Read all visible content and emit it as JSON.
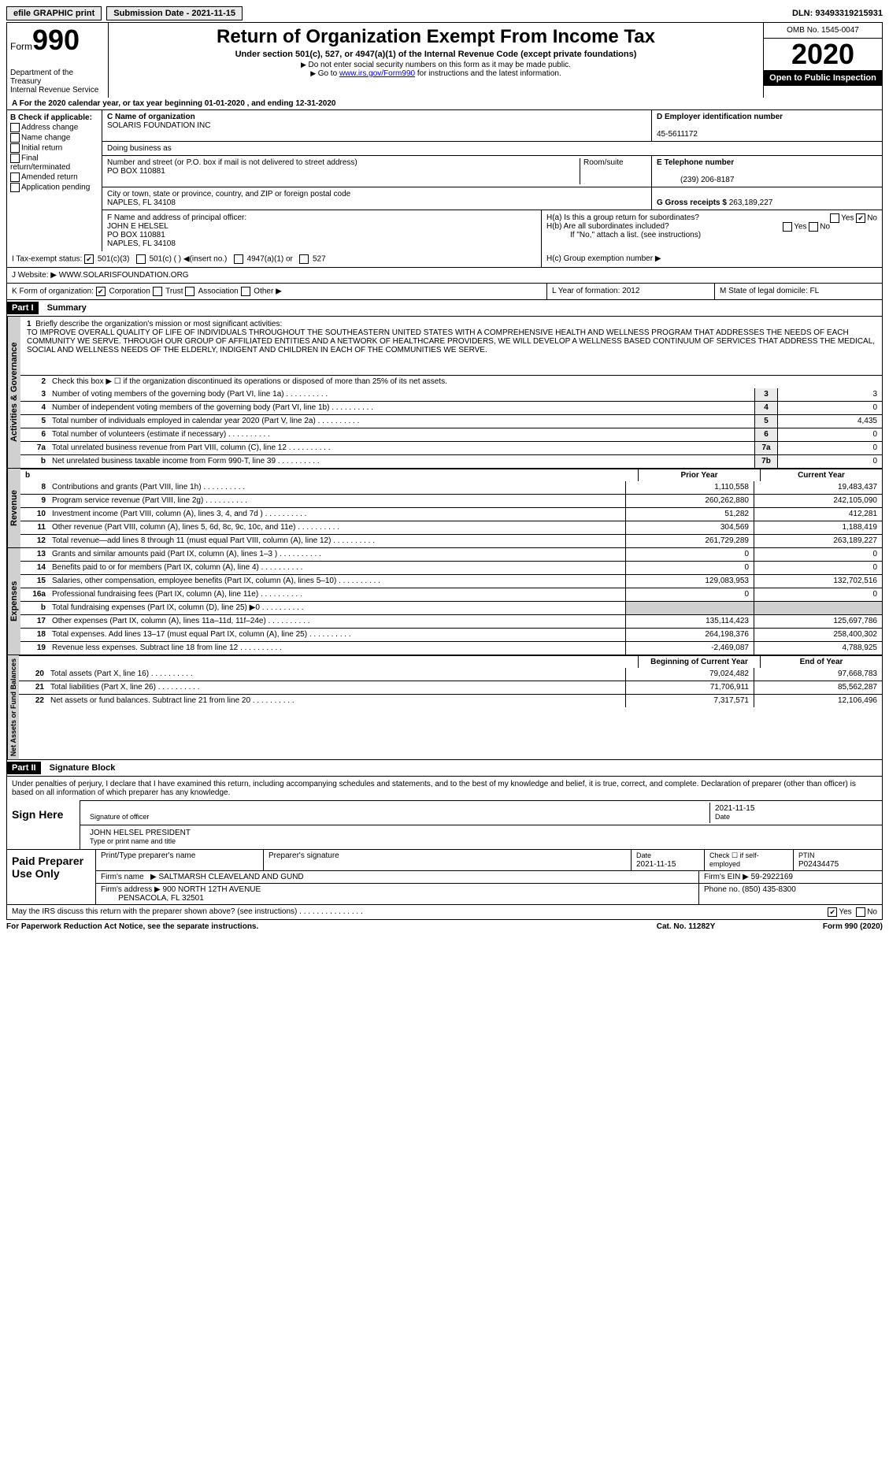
{
  "topbar": {
    "efile": "efile GRAPHIC print",
    "subdate_label": "Submission Date - ",
    "subdate": "2021-11-15",
    "dln_label": "DLN: ",
    "dln": "93493319215931"
  },
  "header": {
    "form_label": "Form",
    "form_no": "990",
    "dept": "Department of the Treasury\nInternal Revenue Service",
    "title": "Return of Organization Exempt From Income Tax",
    "subtitle": "Under section 501(c), 527, or 4947(a)(1) of the Internal Revenue Code (except private foundations)",
    "note1": "Do not enter social security numbers on this form as it may be made public.",
    "note2_pre": "Go to ",
    "note2_link": "www.irs.gov/Form990",
    "note2_post": " for instructions and the latest information.",
    "omb": "OMB No. 1545-0047",
    "year": "2020",
    "inspection": "Open to Public Inspection"
  },
  "row_a": "A  For the 2020 calendar year, or tax year beginning 01-01-2020   , and ending 12-31-2020",
  "col_b": {
    "header": "B Check if applicable:",
    "items": [
      "Address change",
      "Name change",
      "Initial return",
      "Final return/terminated",
      "Amended return",
      "Application pending"
    ]
  },
  "col_c": {
    "name_label": "C Name of organization",
    "name": "SOLARIS FOUNDATION INC",
    "dba_label": "Doing business as",
    "dba": "",
    "addr_label": "Number and street (or P.O. box if mail is not delivered to street address)",
    "room_label": "Room/suite",
    "addr": "PO BOX 110881",
    "city_label": "City or town, state or province, country, and ZIP or foreign postal code",
    "city": "NAPLES, FL  34108"
  },
  "col_d": {
    "ein_label": "D Employer identification number",
    "ein": "45-5611172",
    "phone_label": "E Telephone number",
    "phone": "(239) 206-8187",
    "gross_label": "G Gross receipts $ ",
    "gross": "263,189,227"
  },
  "col_f": {
    "label": "F Name and address of principal officer:",
    "name": "JOHN E HELSEL",
    "addr1": "PO BOX 110881",
    "addr2": "NAPLES, FL  34108"
  },
  "col_h": {
    "ha_label": "H(a)  Is this a group return for subordinates?",
    "hb_label": "H(b)  Are all subordinates included?",
    "hb_note": "If \"No,\" attach a list. (see instructions)",
    "hc_label": "H(c)  Group exemption number",
    "yes": "Yes",
    "no": "No"
  },
  "tax_status": {
    "label": "I  Tax-exempt status:",
    "opt1": "501(c)(3)",
    "opt2": "501(c) (  )",
    "opt2_note": "(insert no.)",
    "opt3": "4947(a)(1) or",
    "opt4": "527"
  },
  "website": {
    "label": "J Website:",
    "value": "WWW.SOLARISFOUNDATION.ORG"
  },
  "row_k": {
    "label": "K Form of organization:",
    "opts": [
      "Corporation",
      "Trust",
      "Association",
      "Other"
    ],
    "l_label": "L Year of formation: ",
    "l_val": "2012",
    "m_label": "M State of legal domicile: ",
    "m_val": "FL"
  },
  "part1": {
    "header": "Part I",
    "title": "Summary",
    "side1": "Activities & Governance",
    "line1_label": "Briefly describe the organization's mission or most significant activities:",
    "mission": "TO IMPROVE OVERALL QUALITY OF LIFE OF INDIVIDUALS THROUGHOUT THE SOUTHEASTERN UNITED STATES WITH A COMPREHENSIVE HEALTH AND WELLNESS PROGRAM THAT ADDRESSES THE NEEDS OF EACH COMMUNITY WE SERVE. THROUGH OUR GROUP OF AFFILIATED ENTITIES AND A NETWORK OF HEALTHCARE PROVIDERS, WE WILL DEVELOP A WELLNESS BASED CONTINUUM OF SERVICES THAT ADDRESS THE MEDICAL, SOCIAL AND WELLNESS NEEDS OF THE ELDERLY, INDIGENT AND CHILDREN IN EACH OF THE COMMUNITIES WE SERVE.",
    "line2": "Check this box ▶ ☐ if the organization discontinued its operations or disposed of more than 25% of its net assets.",
    "lines_gov": [
      {
        "n": "3",
        "txt": "Number of voting members of the governing body (Part VI, line 1a)",
        "box": "3",
        "val": "3"
      },
      {
        "n": "4",
        "txt": "Number of independent voting members of the governing body (Part VI, line 1b)",
        "box": "4",
        "val": "0"
      },
      {
        "n": "5",
        "txt": "Total number of individuals employed in calendar year 2020 (Part V, line 2a)",
        "box": "5",
        "val": "4,435"
      },
      {
        "n": "6",
        "txt": "Total number of volunteers (estimate if necessary)",
        "box": "6",
        "val": "0"
      },
      {
        "n": "7a",
        "txt": "Total unrelated business revenue from Part VIII, column (C), line 12",
        "box": "7a",
        "val": "0"
      },
      {
        "n": "b",
        "txt": "Net unrelated business taxable income from Form 990-T, line 39",
        "box": "7b",
        "val": "0"
      }
    ],
    "side2": "Revenue",
    "py_label": "Prior Year",
    "cy_label": "Current Year",
    "lines_rev": [
      {
        "n": "8",
        "txt": "Contributions and grants (Part VIII, line 1h)",
        "py": "1,110,558",
        "cy": "19,483,437"
      },
      {
        "n": "9",
        "txt": "Program service revenue (Part VIII, line 2g)",
        "py": "260,262,880",
        "cy": "242,105,090"
      },
      {
        "n": "10",
        "txt": "Investment income (Part VIII, column (A), lines 3, 4, and 7d )",
        "py": "51,282",
        "cy": "412,281"
      },
      {
        "n": "11",
        "txt": "Other revenue (Part VIII, column (A), lines 5, 6d, 8c, 9c, 10c, and 11e)",
        "py": "304,569",
        "cy": "1,188,419"
      },
      {
        "n": "12",
        "txt": "Total revenue—add lines 8 through 11 (must equal Part VIII, column (A), line 12)",
        "py": "261,729,289",
        "cy": "263,189,227"
      }
    ],
    "side3": "Expenses",
    "lines_exp": [
      {
        "n": "13",
        "txt": "Grants and similar amounts paid (Part IX, column (A), lines 1–3 )",
        "py": "0",
        "cy": "0"
      },
      {
        "n": "14",
        "txt": "Benefits paid to or for members (Part IX, column (A), line 4)",
        "py": "0",
        "cy": "0"
      },
      {
        "n": "15",
        "txt": "Salaries, other compensation, employee benefits (Part IX, column (A), lines 5–10)",
        "py": "129,083,953",
        "cy": "132,702,516"
      },
      {
        "n": "16a",
        "txt": "Professional fundraising fees (Part IX, column (A), line 11e)",
        "py": "0",
        "cy": "0"
      },
      {
        "n": "b",
        "txt": "Total fundraising expenses (Part IX, column (D), line 25) ▶0",
        "py": "",
        "cy": "",
        "shade": true
      },
      {
        "n": "17",
        "txt": "Other expenses (Part IX, column (A), lines 11a–11d, 11f–24e)",
        "py": "135,114,423",
        "cy": "125,697,786"
      },
      {
        "n": "18",
        "txt": "Total expenses. Add lines 13–17 (must equal Part IX, column (A), line 25)",
        "py": "264,198,376",
        "cy": "258,400,302"
      },
      {
        "n": "19",
        "txt": "Revenue less expenses. Subtract line 18 from line 12",
        "py": "-2,469,087",
        "cy": "4,788,925"
      }
    ],
    "side4": "Net Assets or Fund Balances",
    "boy_label": "Beginning of Current Year",
    "eoy_label": "End of Year",
    "lines_net": [
      {
        "n": "20",
        "txt": "Total assets (Part X, line 16)",
        "py": "79,024,482",
        "cy": "97,668,783"
      },
      {
        "n": "21",
        "txt": "Total liabilities (Part X, line 26)",
        "py": "71,706,911",
        "cy": "85,562,287"
      },
      {
        "n": "22",
        "txt": "Net assets or fund balances. Subtract line 21 from line 20",
        "py": "7,317,571",
        "cy": "12,106,496"
      }
    ]
  },
  "part2": {
    "header": "Part II",
    "title": "Signature Block",
    "decl": "Under penalties of perjury, I declare that I have examined this return, including accompanying schedules and statements, and to the best of my knowledge and belief, it is true, correct, and complete. Declaration of preparer (other than officer) is based on all information of which preparer has any knowledge.",
    "sign_here": "Sign Here",
    "sig_officer": "Signature of officer",
    "sig_date": "2021-11-15",
    "date_label": "Date",
    "officer_name": "JOHN HELSEL PRESIDENT",
    "type_name": "Type or print name and title",
    "paid_label": "Paid Preparer Use Only",
    "prep_name_label": "Print/Type preparer's name",
    "prep_sig_label": "Preparer's signature",
    "prep_date_label": "Date",
    "prep_date": "2021-11-15",
    "check_if": "Check ☐ if self-employed",
    "ptin_label": "PTIN",
    "ptin": "P02434475",
    "firm_name_label": "Firm's name",
    "firm_name": "SALTMARSH CLEAVELAND AND GUND",
    "firm_ein_label": "Firm's EIN",
    "firm_ein": "59-2922169",
    "firm_addr_label": "Firm's address",
    "firm_addr": "900 NORTH 12TH AVENUE",
    "firm_city": "PENSACOLA, FL  32501",
    "firm_phone_label": "Phone no.",
    "firm_phone": "(850) 435-8300",
    "discuss": "May the IRS discuss this return with the preparer shown above? (see instructions)",
    "yes": "Yes",
    "no": "No"
  },
  "footer": {
    "pra": "For Paperwork Reduction Act Notice, see the separate instructions.",
    "cat": "Cat. No. 11282Y",
    "form": "Form 990 (2020)"
  }
}
